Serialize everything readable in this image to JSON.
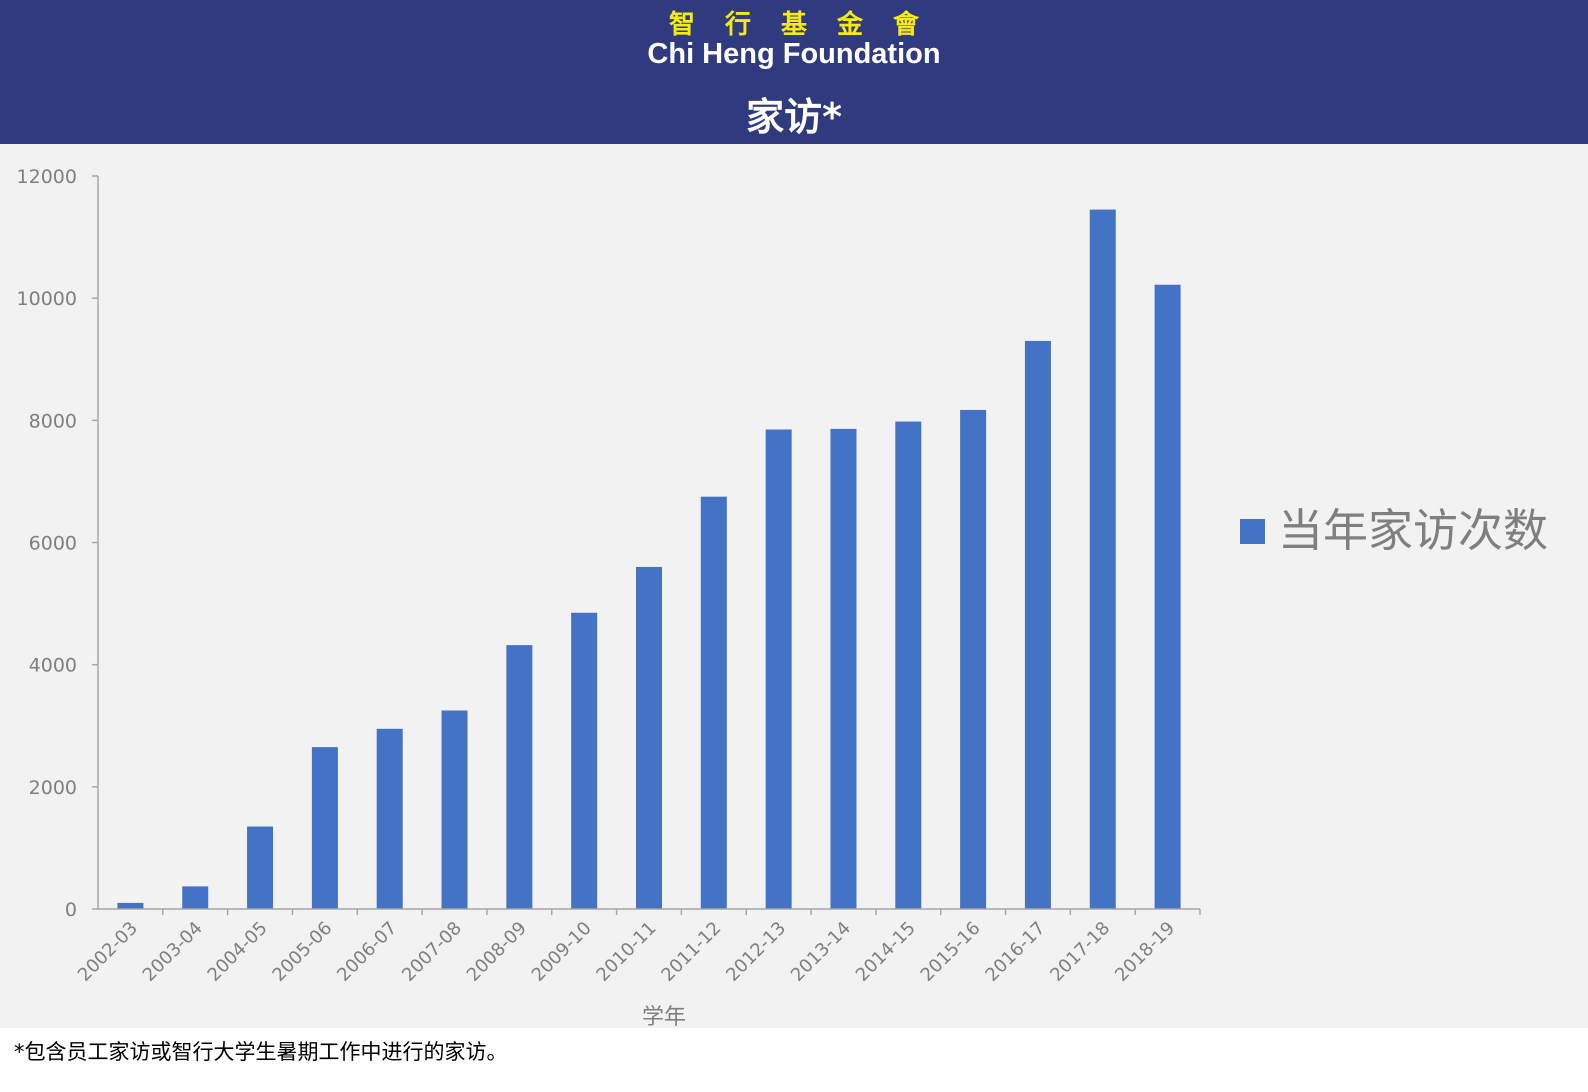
{
  "header": {
    "org_cn": "智行基金會",
    "org_en": "Chi Heng Foundation",
    "title": "家访*"
  },
  "colors": {
    "header_bg": "#303a7e",
    "header_cn": "#f5ea14",
    "bar": "#4472c4",
    "plot_bg": "#f2f2f2"
  },
  "chart_data": {
    "type": "bar",
    "xlabel": "学年",
    "ylabel": "",
    "ylim": [
      0,
      12000
    ],
    "yticks": [
      "0",
      "2000",
      "4000",
      "6000",
      "8000",
      "10000",
      "12000"
    ],
    "grid": false,
    "legend_position": "right",
    "categories": [
      "2002-03",
      "2003-04",
      "2004-05",
      "2005-06",
      "2006-07",
      "2007-08",
      "2008-09",
      "2009-10",
      "2010-11",
      "2011-12",
      "2012-13",
      "2013-14",
      "2014-15",
      "2015-16",
      "2016-17",
      "2017-18",
      "2018-19"
    ],
    "series": [
      {
        "name": "当年家访次数",
        "color": "#4472c4",
        "values": [
          100,
          370,
          1350,
          2650,
          2950,
          3250,
          4320,
          4850,
          5600,
          6750,
          7850,
          7860,
          7980,
          8170,
          9300,
          11450,
          10220
        ]
      }
    ]
  },
  "footnote": "*包含员工家访或智行大学生暑期工作中进行的家访。"
}
